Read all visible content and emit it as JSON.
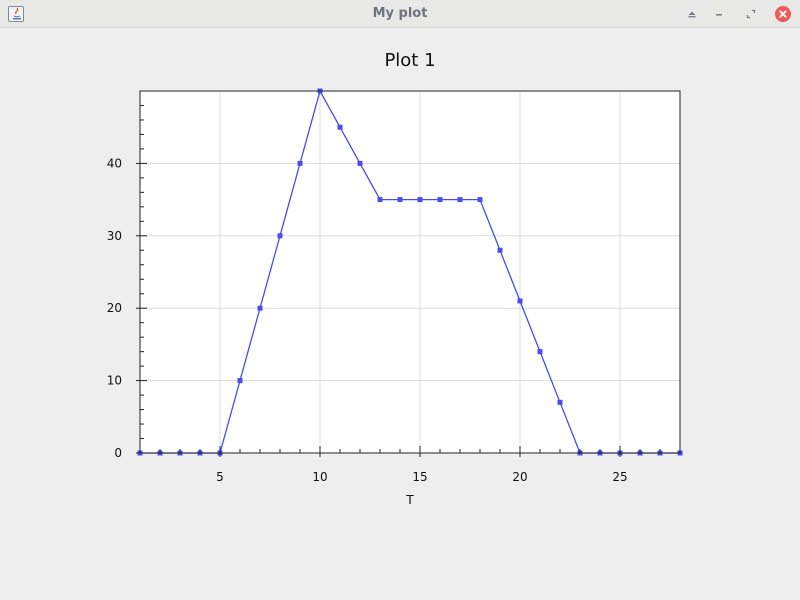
{
  "window": {
    "title": "My plot",
    "icons": {
      "app": "java-app-icon",
      "eject": "eject-icon",
      "minimize": "minimize-icon",
      "maximize": "maximize-icon",
      "close": "close-icon"
    }
  },
  "colors": {
    "series": "#4b4bf0",
    "grid": "#dcdcdc",
    "close_button": "#ec5b5b"
  },
  "chart_data": {
    "type": "line",
    "title": "Plot 1",
    "xlabel": "T",
    "ylabel": "",
    "xlim": [
      1,
      28
    ],
    "ylim": [
      0,
      50
    ],
    "xticks": [
      5,
      10,
      15,
      20,
      25
    ],
    "yticks": [
      0,
      10,
      20,
      30,
      40
    ],
    "grid": true,
    "legend": "none",
    "series": [
      {
        "x": [
          1,
          2,
          3,
          4,
          5,
          6,
          7,
          8,
          9,
          10,
          11,
          12,
          13,
          14,
          15,
          16,
          17,
          18,
          19,
          20,
          21,
          22,
          23,
          24,
          25,
          26,
          27,
          28
        ],
        "values": [
          0,
          0,
          0,
          0,
          0,
          10,
          20,
          30,
          40,
          50,
          45,
          40,
          35,
          35,
          35,
          35,
          35,
          35,
          28,
          21,
          14,
          7,
          0,
          0,
          0,
          0,
          0,
          0
        ]
      }
    ]
  }
}
